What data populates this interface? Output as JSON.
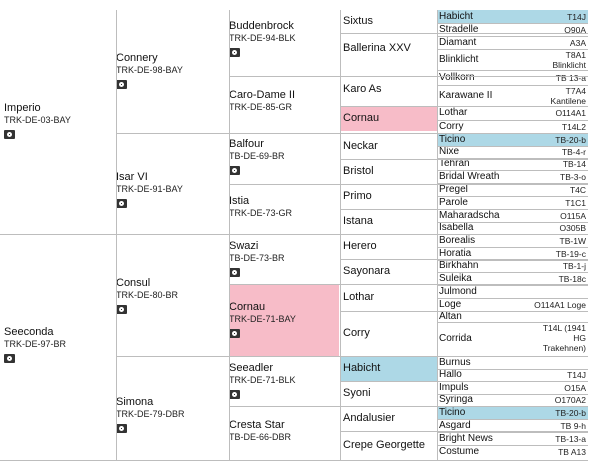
{
  "gen1": [
    {
      "name": "Imperio",
      "reg": "TRK-DE-03-BAY"
    },
    {
      "name": "Seeconda",
      "reg": "TRK-DE-97-BR"
    }
  ],
  "gen2": [
    {
      "name": "Connery",
      "reg": "TRK-DE-98-BAY"
    },
    {
      "name": "Isar VI",
      "reg": "TRK-DE-91-BAY"
    },
    {
      "name": "Consul",
      "reg": "TRK-DE-80-BR"
    },
    {
      "name": "Simona",
      "reg": "TRK-DE-79-DBR"
    }
  ],
  "gen3": [
    {
      "name": "Buddenbrock",
      "reg": "TRK-DE-94-BLK"
    },
    {
      "name": "Caro-Dame II",
      "reg": "TRK-DE-85-GR"
    },
    {
      "name": "Balfour",
      "reg": "TB-DE-69-BR"
    },
    {
      "name": "Istia",
      "reg": "TRK-DE-73-GR"
    },
    {
      "name": "Swazi",
      "reg": "TB-DE-73-BR"
    },
    {
      "name": "Cornau",
      "reg": "TRK-DE-71-BAY"
    },
    {
      "name": "Seeadler",
      "reg": "TRK-DE-71-BLK"
    },
    {
      "name": "Cresta Star",
      "reg": "TB-DE-66-DBR"
    }
  ],
  "gen4": [
    "Sixtus",
    "Ballerina XXV",
    "Karo As",
    "Cornau",
    "Neckar",
    "Bristol",
    "Primo",
    "Istana",
    "Herero",
    "Sayonara",
    "Lothar",
    "Corry",
    "Habicht",
    "Syoni",
    "Andalusier",
    "Crepe Georgette"
  ],
  "gen5": [
    {
      "name": "Habicht",
      "code": "T14J"
    },
    {
      "name": "Stradelle",
      "code": "O90A"
    },
    {
      "name": "Diamant",
      "code": "A3A"
    },
    {
      "name": "Blinklicht",
      "code": "T8A1 Blinklicht"
    },
    {
      "name": "Vollkorn",
      "code": "TB 13-a"
    },
    {
      "name": "Karawane II",
      "code": "T7A4 Kantilene"
    },
    {
      "name": "Lothar",
      "code": "O114A1"
    },
    {
      "name": "Corry",
      "code": "T14L2"
    },
    {
      "name": "Ticino",
      "code": "TB-20-b"
    },
    {
      "name": "Nixe",
      "code": "TB-4-r"
    },
    {
      "name": "Tehran",
      "code": "TB-14"
    },
    {
      "name": "Bridal Wreath",
      "code": "TB-3-o"
    },
    {
      "name": "Pregel",
      "code": "T4C"
    },
    {
      "name": "Parole",
      "code": "T1C1"
    },
    {
      "name": "Maharadscha",
      "code": "O115A"
    },
    {
      "name": "Isabella",
      "code": "O305B"
    },
    {
      "name": "Borealis",
      "code": "TB-1W"
    },
    {
      "name": "Horatia",
      "code": "TB-19-c"
    },
    {
      "name": "Birkhahn",
      "code": "TB-1-j"
    },
    {
      "name": "Suleika",
      "code": "TB-18c"
    },
    {
      "name": "Julmond",
      "code": ""
    },
    {
      "name": "Loge",
      "code": "O114A1 Loge"
    },
    {
      "name": "Altan",
      "code": ""
    },
    {
      "name": "Corrida",
      "code": "T14L (1941 HG Trakehnen)"
    },
    {
      "name": "Burnus",
      "code": ""
    },
    {
      "name": "Hallo",
      "code": "T14J"
    },
    {
      "name": "Impuls",
      "code": "O15A"
    },
    {
      "name": "Syringa",
      "code": "O170A2"
    },
    {
      "name": "Ticino",
      "code": "TB-20-b"
    },
    {
      "name": "Asgard",
      "code": "TB 9-h"
    },
    {
      "name": "Bright News",
      "code": "TB-13-a"
    },
    {
      "name": "Costume",
      "code": "TB A13"
    }
  ],
  "colors": {
    "highlight_pink": "#f7bcc8",
    "highlight_blue": "#add8e6",
    "grid": "#bdbdbd"
  },
  "icons": {
    "photo": "camera-icon"
  }
}
